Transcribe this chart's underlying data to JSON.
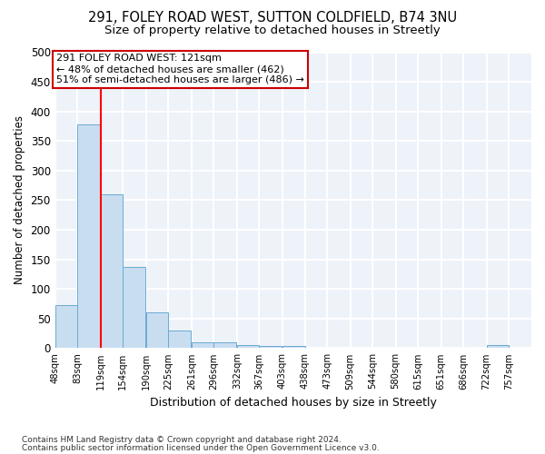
{
  "title1": "291, FOLEY ROAD WEST, SUTTON COLDFIELD, B74 3NU",
  "title2": "Size of property relative to detached houses in Streetly",
  "xlabel": "Distribution of detached houses by size in Streetly",
  "ylabel": "Number of detached properties",
  "bins": [
    48,
    83,
    119,
    154,
    190,
    225,
    261,
    296,
    332,
    367,
    403,
    438,
    473,
    509,
    544,
    580,
    615,
    651,
    686,
    722,
    757
  ],
  "counts": [
    72,
    378,
    260,
    137,
    60,
    30,
    10,
    10,
    5,
    3,
    3,
    0,
    0,
    0,
    0,
    0,
    0,
    0,
    0,
    5
  ],
  "bar_color": "#c9ddf0",
  "bar_edge_color": "#6aaad4",
  "red_line_x": 119,
  "annotation_line1": "291 FOLEY ROAD WEST: 121sqm",
  "annotation_line2": "← 48% of detached houses are smaller (462)",
  "annotation_line3": "51% of semi-detached houses are larger (486) →",
  "annotation_box_facecolor": "#ffffff",
  "annotation_box_edgecolor": "#cc0000",
  "footnote1": "Contains HM Land Registry data © Crown copyright and database right 2024.",
  "footnote2": "Contains public sector information licensed under the Open Government Licence v3.0.",
  "ylim": [
    0,
    500
  ],
  "background_color": "#eef2f9",
  "grid_color": "#ffffff",
  "title_fontsize": 10.5,
  "subtitle_fontsize": 9.5,
  "tick_labels": [
    "48sqm",
    "83sqm",
    "119sqm",
    "154sqm",
    "190sqm",
    "225sqm",
    "261sqm",
    "296sqm",
    "332sqm",
    "367sqm",
    "403sqm",
    "438sqm",
    "473sqm",
    "509sqm",
    "544sqm",
    "580sqm",
    "615sqm",
    "651sqm",
    "686sqm",
    "722sqm",
    "757sqm"
  ],
  "yticks": [
    0,
    50,
    100,
    150,
    200,
    250,
    300,
    350,
    400,
    450,
    500
  ]
}
